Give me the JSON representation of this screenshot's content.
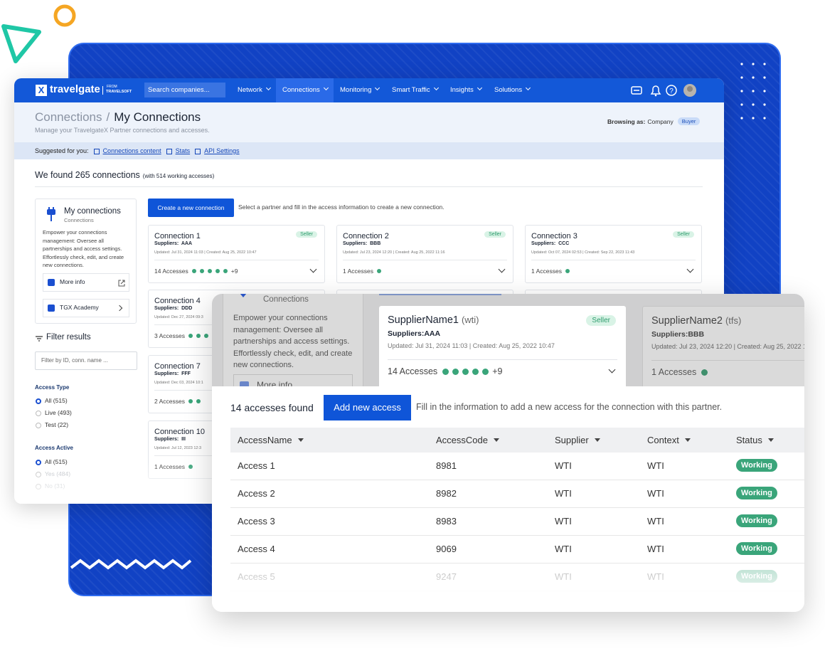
{
  "nav": {
    "logo_mark": "X",
    "logo": "travelgate",
    "logo_from": "FROM",
    "logo_company": "TRAVELSOFT",
    "search": "Search companies...",
    "menu": [
      "Network",
      "Connections",
      "Monitoring",
      "Smart Traffic",
      "Insights",
      "Solutions"
    ]
  },
  "header": {
    "breadcrumb_parent": "Connections",
    "separator": "/",
    "title": "My Connections",
    "subtitle": "Manage your TravelgateX Partner connections and accesses.",
    "browsing_label": "Browsing as:",
    "browsing_value": "Company",
    "role": "Buyer"
  },
  "suggested": {
    "label": "Suggested for you:",
    "links": [
      "Connections content",
      "Stats",
      "API Settings"
    ]
  },
  "summary": {
    "title": "We found 265 connections",
    "detail": "(with 514 working accesses)"
  },
  "sidebar": {
    "title": "My connections",
    "subtitle": "Connections",
    "description": "Empower your connections management: Oversee all partnerships and access settings. Effortlessly check, edit, and create new connections.",
    "links": [
      "More info",
      "TGX Academy"
    ],
    "filter_title": "Filter results",
    "filter_placeholder": "Filter by ID, conn. name ...",
    "groups": [
      {
        "title": "Access Type",
        "options": [
          "All (515)",
          "Live (493)",
          "Test (22)"
        ]
      },
      {
        "title": "Access Active",
        "options": [
          "All (515)",
          "Yes (484)",
          "No (31)"
        ]
      }
    ]
  },
  "toolbar": {
    "button": "Create a new connection",
    "hint": "Select a partner and fill in the access information to create a new connection."
  },
  "connections": [
    {
      "name": "Connection 1",
      "badge": "Seller",
      "suppliers": "Suppliers:  AAA",
      "dates": "Updated: Jul 31, 2024 11:03 | Created: Aug 25, 2022 10:47",
      "accesses": "14 Accesses",
      "more": "+9"
    },
    {
      "name": "Connection 2",
      "badge": "Seller",
      "suppliers": "Suppliers:  BBB",
      "dates": "Updated: Jul 23, 2024 12:20 | Created: Aug 25, 2022 11:16",
      "accesses": "1 Accesses"
    },
    {
      "name": "Connection 3",
      "badge": "Seller",
      "suppliers": "Suppliers:  CCC",
      "dates": "Updated: Oct 07, 2024 02:53 | Created: Sep 22, 2023 11:43",
      "accesses": "1 Accesses"
    },
    {
      "name": "Connection 4",
      "suppliers": "Suppliers:  DDD",
      "dates": "Updated: Dec 27, 2024 09:3",
      "accesses": "3 Accesses"
    },
    {
      "name": "Connection 7",
      "suppliers": "Suppliers:  FFF",
      "dates": "Updated: Dec 03, 2024 10:1",
      "accesses": "2 Accesses"
    },
    {
      "name": "Connection 10",
      "suppliers": "Suppliers:  III",
      "dates": "Updated: Jul 12, 2023 12:3",
      "accesses": "1 Accesses"
    }
  ],
  "detail": {
    "sidebar_subtitle": "Connections",
    "sidebar_description": "Empower your connections management: Oversee all partnerships and access settings. Effortlessly check, edit, and create new connections.",
    "sidebar_link": "More info",
    "cards": [
      {
        "name": "SupplierName1",
        "code": "(wti)",
        "badge": "Seller",
        "suppliers": "Suppliers:AAA",
        "dates": "Updated: Jul 31, 2024 11:03 | Created: Aug 25, 2022 10:47",
        "accesses": "14 Accesses",
        "more": "+9"
      },
      {
        "name": "SupplierName2",
        "code": "(tfs)",
        "suppliers": "Suppliers:BBB",
        "dates": "Updated: Jul 23, 2024 12:20 | Created: Aug 25, 2022 1",
        "accesses": "1 Accesses"
      }
    ],
    "count": "14 accesses found",
    "button": "Add new access",
    "hint": "Fill in the information to add a new access for the connection with this partner.",
    "columns": [
      "AccessName",
      "AccessCode",
      "Supplier",
      "Context",
      "Status"
    ],
    "rows": [
      [
        "Access 1",
        "8981",
        "WTI",
        "WTI",
        "Working"
      ],
      [
        "Access 2",
        "8982",
        "WTI",
        "WTI",
        "Working"
      ],
      [
        "Access 3",
        "8983",
        "WTI",
        "WTI",
        "Working"
      ],
      [
        "Access 4",
        "9069",
        "WTI",
        "WTI",
        "Working"
      ],
      [
        "Access 5",
        "9247",
        "WTI",
        "WTI",
        "Working"
      ]
    ]
  }
}
